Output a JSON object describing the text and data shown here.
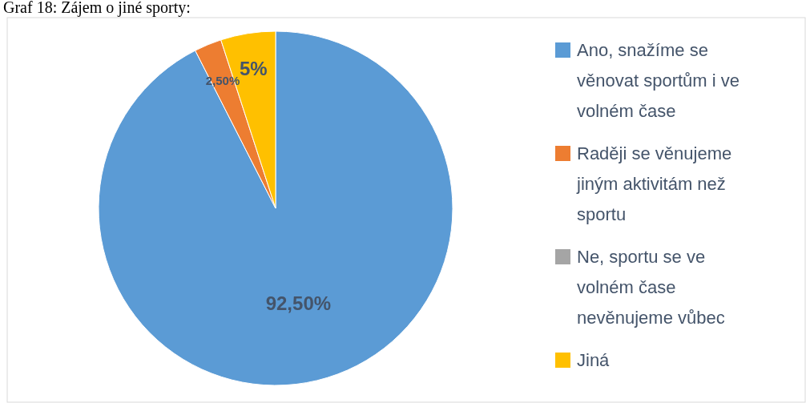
{
  "chart_data": {
    "type": "pie",
    "title": "Graf 18: Zájem o jiné sporty:",
    "categories": [
      "Ano, snažíme se věnovat sportům i ve volném čase",
      "Raději se věnujeme jiným aktivitám než sportu",
      "Ne, sportu se ve volném čase nevěnujeme vůbec",
      "Jiná"
    ],
    "values": [
      92.5,
      2.5,
      0,
      5
    ],
    "colors": [
      "#5b9bd5",
      "#ed7d31",
      "#a5a5a5",
      "#ffc000"
    ],
    "value_labels": [
      "92,50%",
      "2,50%",
      null,
      "5%"
    ],
    "legend": "right"
  }
}
